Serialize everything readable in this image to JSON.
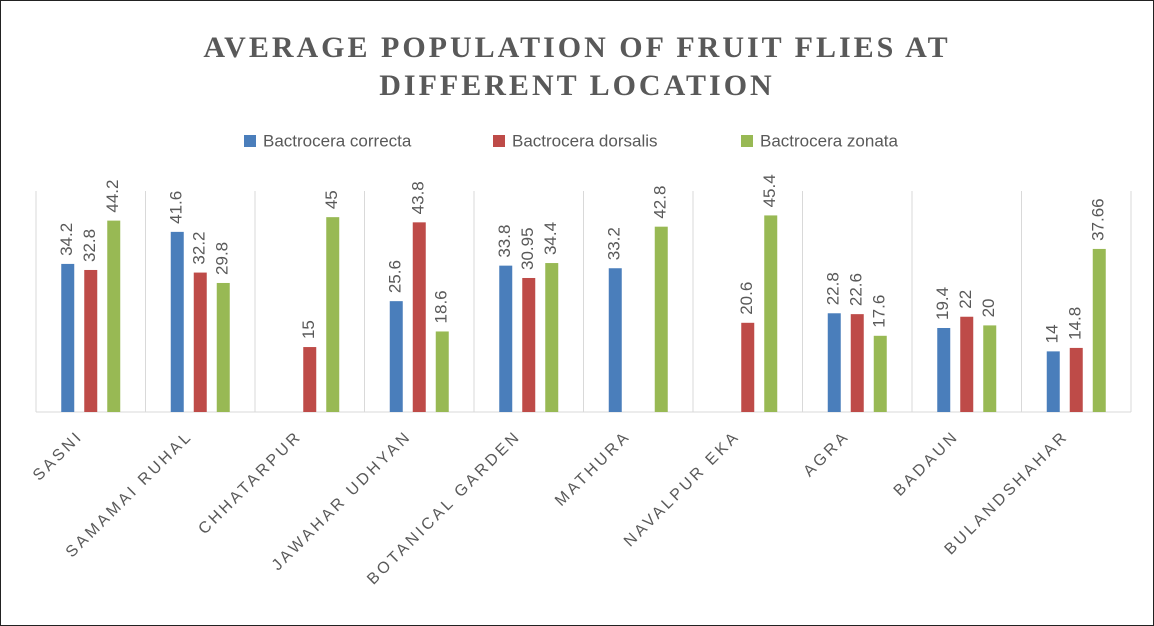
{
  "chart_data": {
    "type": "bar",
    "title": "AVERAGE POPULATION OF FRUIT FLIES AT DIFFERENT LOCATION",
    "categories": [
      "SASNI",
      "SAMAMAI RUHAL",
      "CHHATARPUR",
      "JAWAHAR UDHYAN",
      "BOTANICAL GARDEN",
      "MATHURA",
      "NAVALPUR EKA",
      "AGRA",
      "BADAUN",
      "BULANDSHAHAR"
    ],
    "series": [
      {
        "name": "Bactrocera correcta",
        "color": "#4a7ebb",
        "values": [
          34.2,
          41.6,
          null,
          25.6,
          33.8,
          33.2,
          null,
          22.8,
          19.4,
          14
        ]
      },
      {
        "name": "Bactrocera dorsalis",
        "color": "#be4b48",
        "values": [
          32.8,
          32.2,
          15,
          43.8,
          30.95,
          null,
          20.6,
          22.6,
          22,
          14.8
        ]
      },
      {
        "name": "Bactrocera zonata",
        "color": "#98b954",
        "values": [
          44.2,
          29.8,
          45,
          18.6,
          34.4,
          42.8,
          45.4,
          17.6,
          20,
          37.66
        ]
      }
    ],
    "legend": "top"
  }
}
